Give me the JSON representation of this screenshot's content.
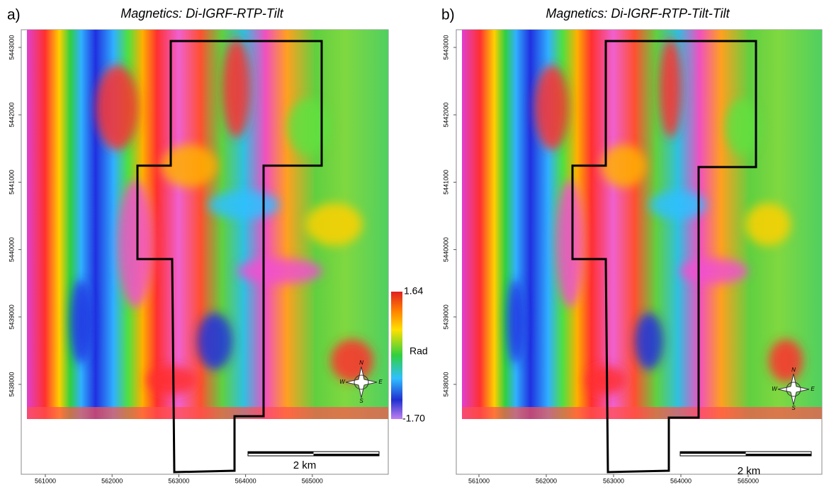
{
  "panels": [
    {
      "label": "a)",
      "title": "Magnetics: Di-IGRF-RTP-Tilt",
      "xticks": [
        561000,
        562000,
        563000,
        564000,
        565000
      ],
      "yticks": [
        5443000,
        5442000,
        5441000,
        5440000,
        5439000,
        5438000
      ],
      "colorbar": {
        "max": "1.64",
        "unit": "Rad",
        "min": "-1.70"
      },
      "scale_bar": "2 km",
      "compass": {
        "n": "N",
        "e": "E",
        "s": "S",
        "w": "W"
      }
    },
    {
      "label": "b)",
      "title": "Magnetics: Di-IGRF-RTP-Tilt-Tilt",
      "xticks": [
        561000,
        562000,
        563000,
        564000,
        565000
      ],
      "yticks": [
        5443000,
        5442000,
        5441000,
        5440000,
        5439000,
        5438000
      ],
      "scale_bar": "2 km",
      "compass": {
        "n": "N",
        "e": "E",
        "s": "S",
        "w": "W"
      }
    }
  ]
}
